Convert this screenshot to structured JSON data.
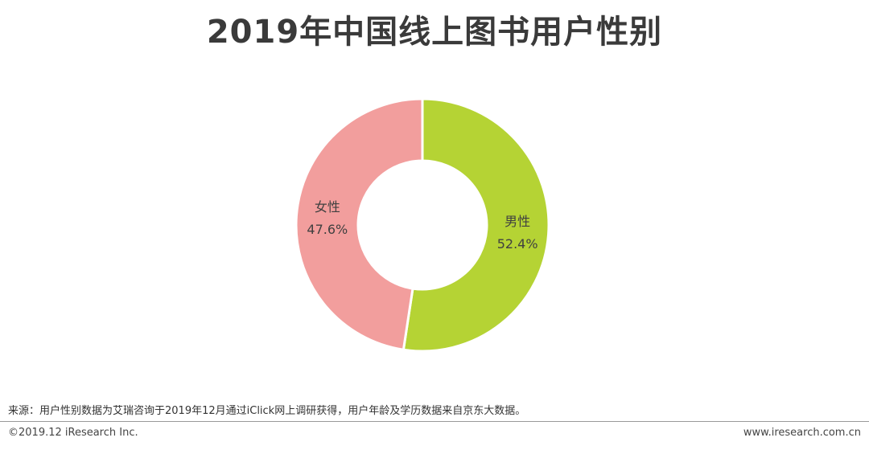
{
  "title": "2019年中国线上图书用户性别",
  "chart_data": {
    "type": "pie",
    "donut": true,
    "slices": [
      {
        "label": "男性",
        "value": 52.4,
        "value_label": "52.4%",
        "color": "#b5d334"
      },
      {
        "label": "女性",
        "value": 47.6,
        "value_label": "47.6%",
        "color": "#f29e9d"
      }
    ]
  },
  "footer": {
    "source": "来源：用户性别数据为艾瑞咨询于2019年12月通过iClick网上调研获得，用户年龄及学历数据来自京东大数据。",
    "copyright": "©2019.12 iResearch Inc.",
    "site": "www.iresearch.com.cn"
  }
}
